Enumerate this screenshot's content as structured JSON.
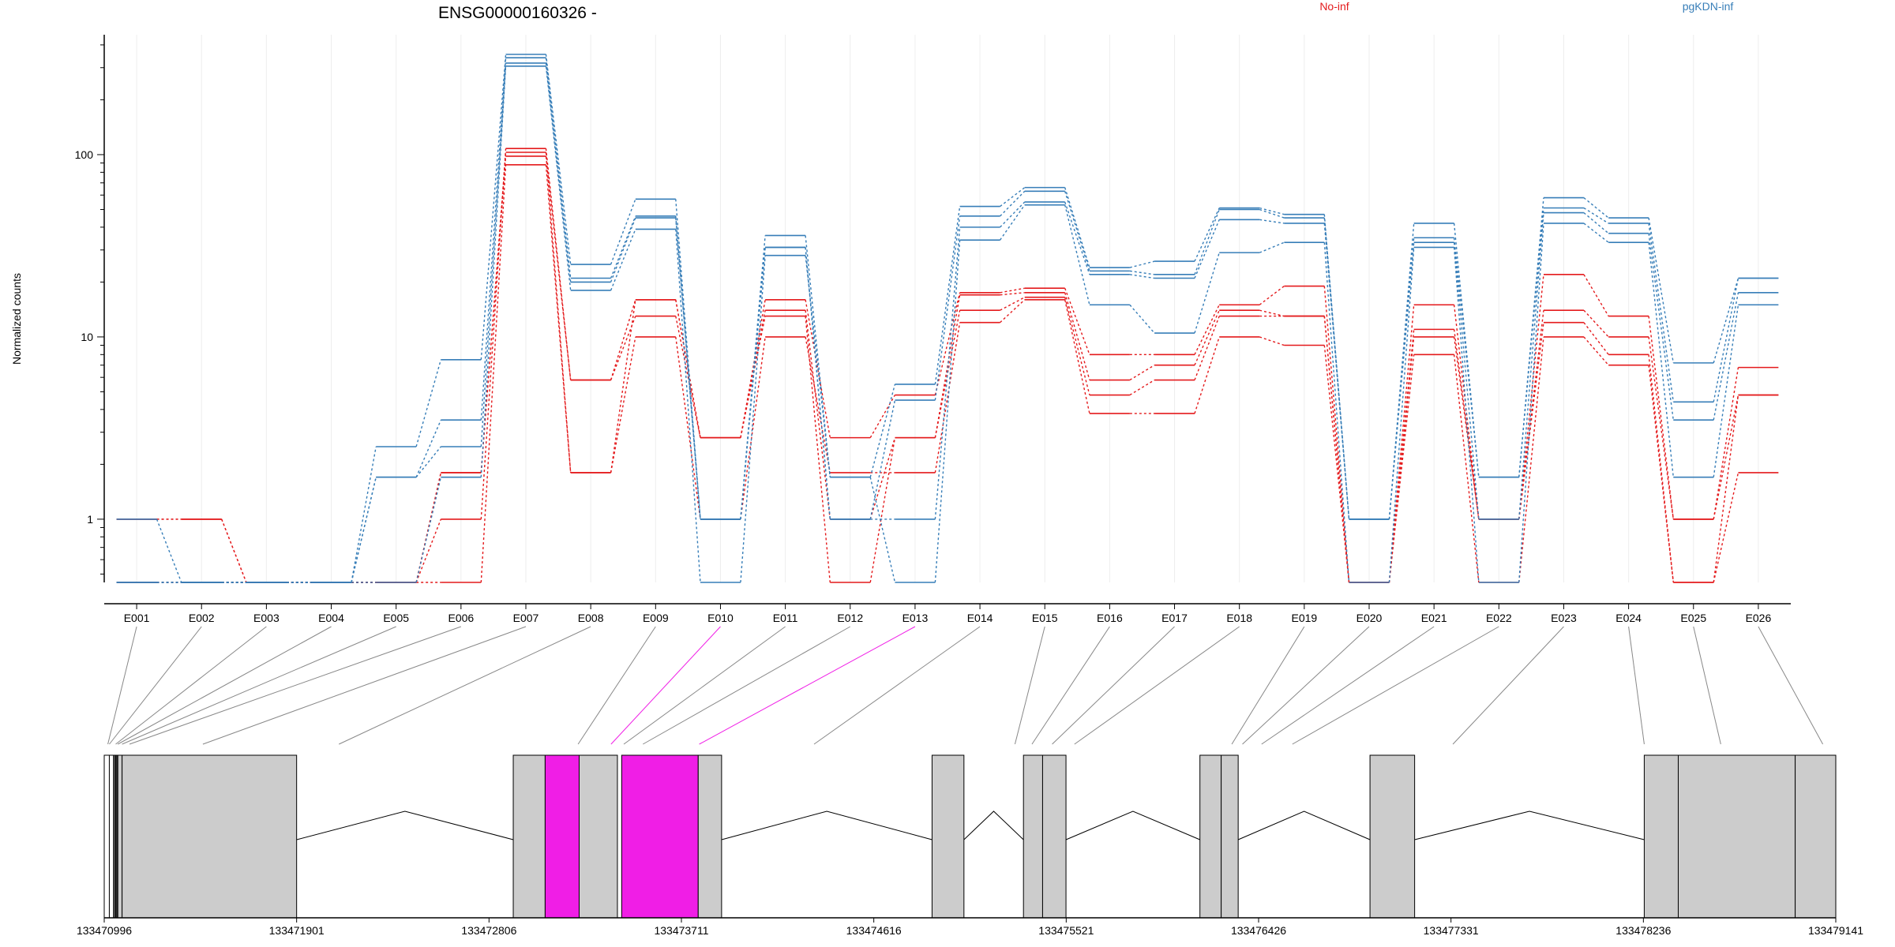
{
  "title": "ENSG00000160326 -",
  "ylabel": "Normalized counts",
  "colors": {
    "No-inf": "#e41a1c",
    "pgKDN-inf": "#377eb8",
    "highlight": "#f01ee6",
    "exon": "#cccccc"
  },
  "chart_data": {
    "type": "line",
    "title": "ENSG00000160326 -",
    "ylabel": "Normalized counts",
    "yscale": "log",
    "yticks": [
      "1",
      "10",
      "100"
    ],
    "ylim": [
      0.45,
      420
    ],
    "categories": [
      "E001",
      "E002",
      "E003",
      "E004",
      "E005",
      "E006",
      "E007",
      "E008",
      "E009",
      "E010",
      "E011",
      "E012",
      "E013",
      "E014",
      "E015",
      "E016",
      "E017",
      "E018",
      "E019",
      "E020",
      "E021",
      "E022",
      "E023",
      "E024",
      "E025",
      "E026"
    ],
    "legend": [
      "No-inf",
      "pgKDN-inf"
    ],
    "legend_position": "top-right",
    "series": [
      {
        "name": "No-inf",
        "values": [
          1.0,
          1.0,
          0.45,
          0.45,
          0.45,
          1.0,
          108,
          5.8,
          16,
          2.8,
          16,
          2.8,
          4.8,
          17.5,
          18.5,
          8,
          8,
          15,
          19,
          0.45,
          15,
          1.0,
          22,
          13,
          1.0,
          6.8
        ]
      },
      {
        "name": "No-inf",
        "values": [
          1.0,
          1.0,
          0.45,
          0.45,
          0.45,
          1.8,
          98,
          5.8,
          13,
          2.8,
          14,
          1.0,
          2.8,
          17,
          17.5,
          5.8,
          7,
          14,
          13,
          0.45,
          11,
          1.0,
          14,
          10,
          1.0,
          4.8
        ]
      },
      {
        "name": "No-inf",
        "values": [
          0.45,
          0.45,
          0.45,
          0.45,
          0.45,
          1.8,
          103,
          1.8,
          16,
          2.8,
          13,
          0.45,
          2.8,
          14,
          16.5,
          4.8,
          5.8,
          13,
          13,
          0.45,
          10,
          1.0,
          12,
          8,
          0.45,
          4.8
        ]
      },
      {
        "name": "No-inf",
        "values": [
          0.45,
          0.45,
          0.45,
          0.45,
          0.45,
          0.45,
          88,
          1.8,
          10,
          1.0,
          10,
          1.8,
          1.8,
          12,
          16,
          3.8,
          3.8,
          10,
          9,
          0.45,
          8,
          0.45,
          10,
          7,
          0.45,
          1.8
        ]
      },
      {
        "name": "pgKDN-inf",
        "values": [
          1.0,
          0.45,
          0.45,
          0.45,
          2.5,
          7.5,
          355,
          25,
          57,
          1.0,
          36,
          1.7,
          5.5,
          52,
          66,
          24,
          26,
          51,
          47,
          1.0,
          42,
          1.7,
          58,
          45,
          7.2,
          21
        ]
      },
      {
        "name": "pgKDN-inf",
        "values": [
          0.45,
          0.45,
          0.45,
          0.45,
          1.7,
          3.5,
          340,
          21,
          46,
          1.0,
          31,
          1.0,
          4.5,
          46,
          63,
          23,
          22,
          50,
          45,
          1.0,
          35,
          1.7,
          51,
          42,
          4.4,
          21
        ]
      },
      {
        "name": "pgKDN-inf",
        "values": [
          0.45,
          0.45,
          0.45,
          0.45,
          1.7,
          2.5,
          318,
          20,
          45,
          1.0,
          31,
          1.0,
          1.0,
          40,
          55,
          22,
          21,
          44,
          42,
          1.0,
          33,
          1.0,
          48,
          37,
          3.5,
          17.5
        ]
      },
      {
        "name": "pgKDN-inf",
        "values": [
          0.45,
          0.45,
          0.45,
          0.45,
          0.45,
          1.7,
          306,
          18,
          39,
          0.45,
          28,
          1.7,
          0.45,
          34,
          53,
          15,
          10.5,
          29,
          33,
          0.45,
          31,
          0.45,
          42,
          33,
          1.7,
          15
        ]
      }
    ],
    "gene_model": {
      "coordinate_ticks": [
        "133470996",
        "133471901",
        "133472806",
        "133473711",
        "133474616",
        "133475521",
        "133476426",
        "133477331",
        "133478236",
        "133479141"
      ],
      "coordinate_tick_values": [
        133470996,
        133471901,
        133472806,
        133473711,
        133474616,
        133475521,
        133476426,
        133477331,
        133478236,
        133479141
      ],
      "exon_genomic_positions": [
        133471013,
        133471020,
        133471050,
        133471060,
        133471080,
        133471115,
        133471460,
        133472100,
        133473225,
        133473380,
        133473440,
        133473530,
        133473795,
        133474335,
        133475280,
        133475360,
        133475455,
        133475560,
        133476300,
        133476350,
        133476440,
        133476585,
        133477340,
        133478240,
        133478600,
        133479080
      ],
      "highlighted_exons": [
        "E010",
        "E013"
      ]
    }
  }
}
